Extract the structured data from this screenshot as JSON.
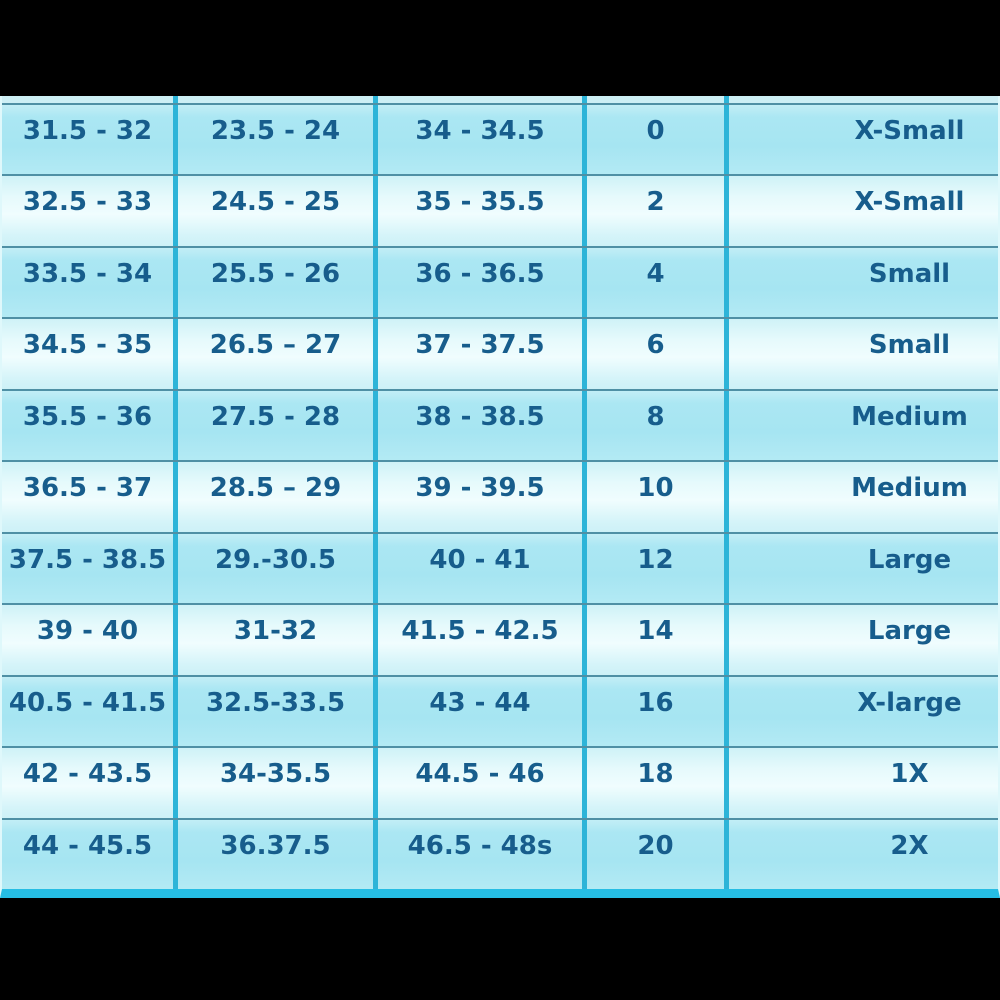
{
  "chart_data": {
    "type": "table",
    "title": "",
    "header_visible": false,
    "rows": [
      [
        "31.5 - 32",
        "23.5 - 24",
        "34 - 34.5",
        "0",
        "X-Small"
      ],
      [
        "32.5 - 33",
        "24.5 - 25",
        "35 - 35.5",
        "2",
        "X-Small"
      ],
      [
        "33.5 - 34",
        "25.5 - 26",
        "36 - 36.5",
        "4",
        "Small"
      ],
      [
        "34.5 - 35",
        "26.5 – 27",
        "37 - 37.5",
        "6",
        "Small"
      ],
      [
        "35.5 - 36",
        "27.5 - 28",
        "38 - 38.5",
        "8",
        "Medium"
      ],
      [
        "36.5 - 37",
        "28.5 – 29",
        "39 - 39.5",
        "10",
        "Medium"
      ],
      [
        "37.5 - 38.5",
        "29.-30.5",
        "40 - 41",
        "12",
        "Large"
      ],
      [
        "39 - 40",
        "31-32",
        "41.5 - 42.5",
        "14",
        "Large"
      ],
      [
        "40.5 - 41.5",
        "32.5-33.5",
        "43 - 44",
        "16",
        "X-large"
      ],
      [
        "42 - 43.5",
        "34-35.5",
        "44.5 - 46",
        "18",
        "1X"
      ],
      [
        "44 - 45.5",
        "36.37.5",
        "46.5 - 48s",
        "20",
        "2X"
      ]
    ]
  },
  "colors": {
    "background": "#000000",
    "text": "#175d8c",
    "row_dark": "#a9e6f2",
    "row_light": "#e8fbfd",
    "horizontal_border": "#4f90a5",
    "vertical_border": "#2db4d8",
    "bottom_border": "#26bde4"
  }
}
